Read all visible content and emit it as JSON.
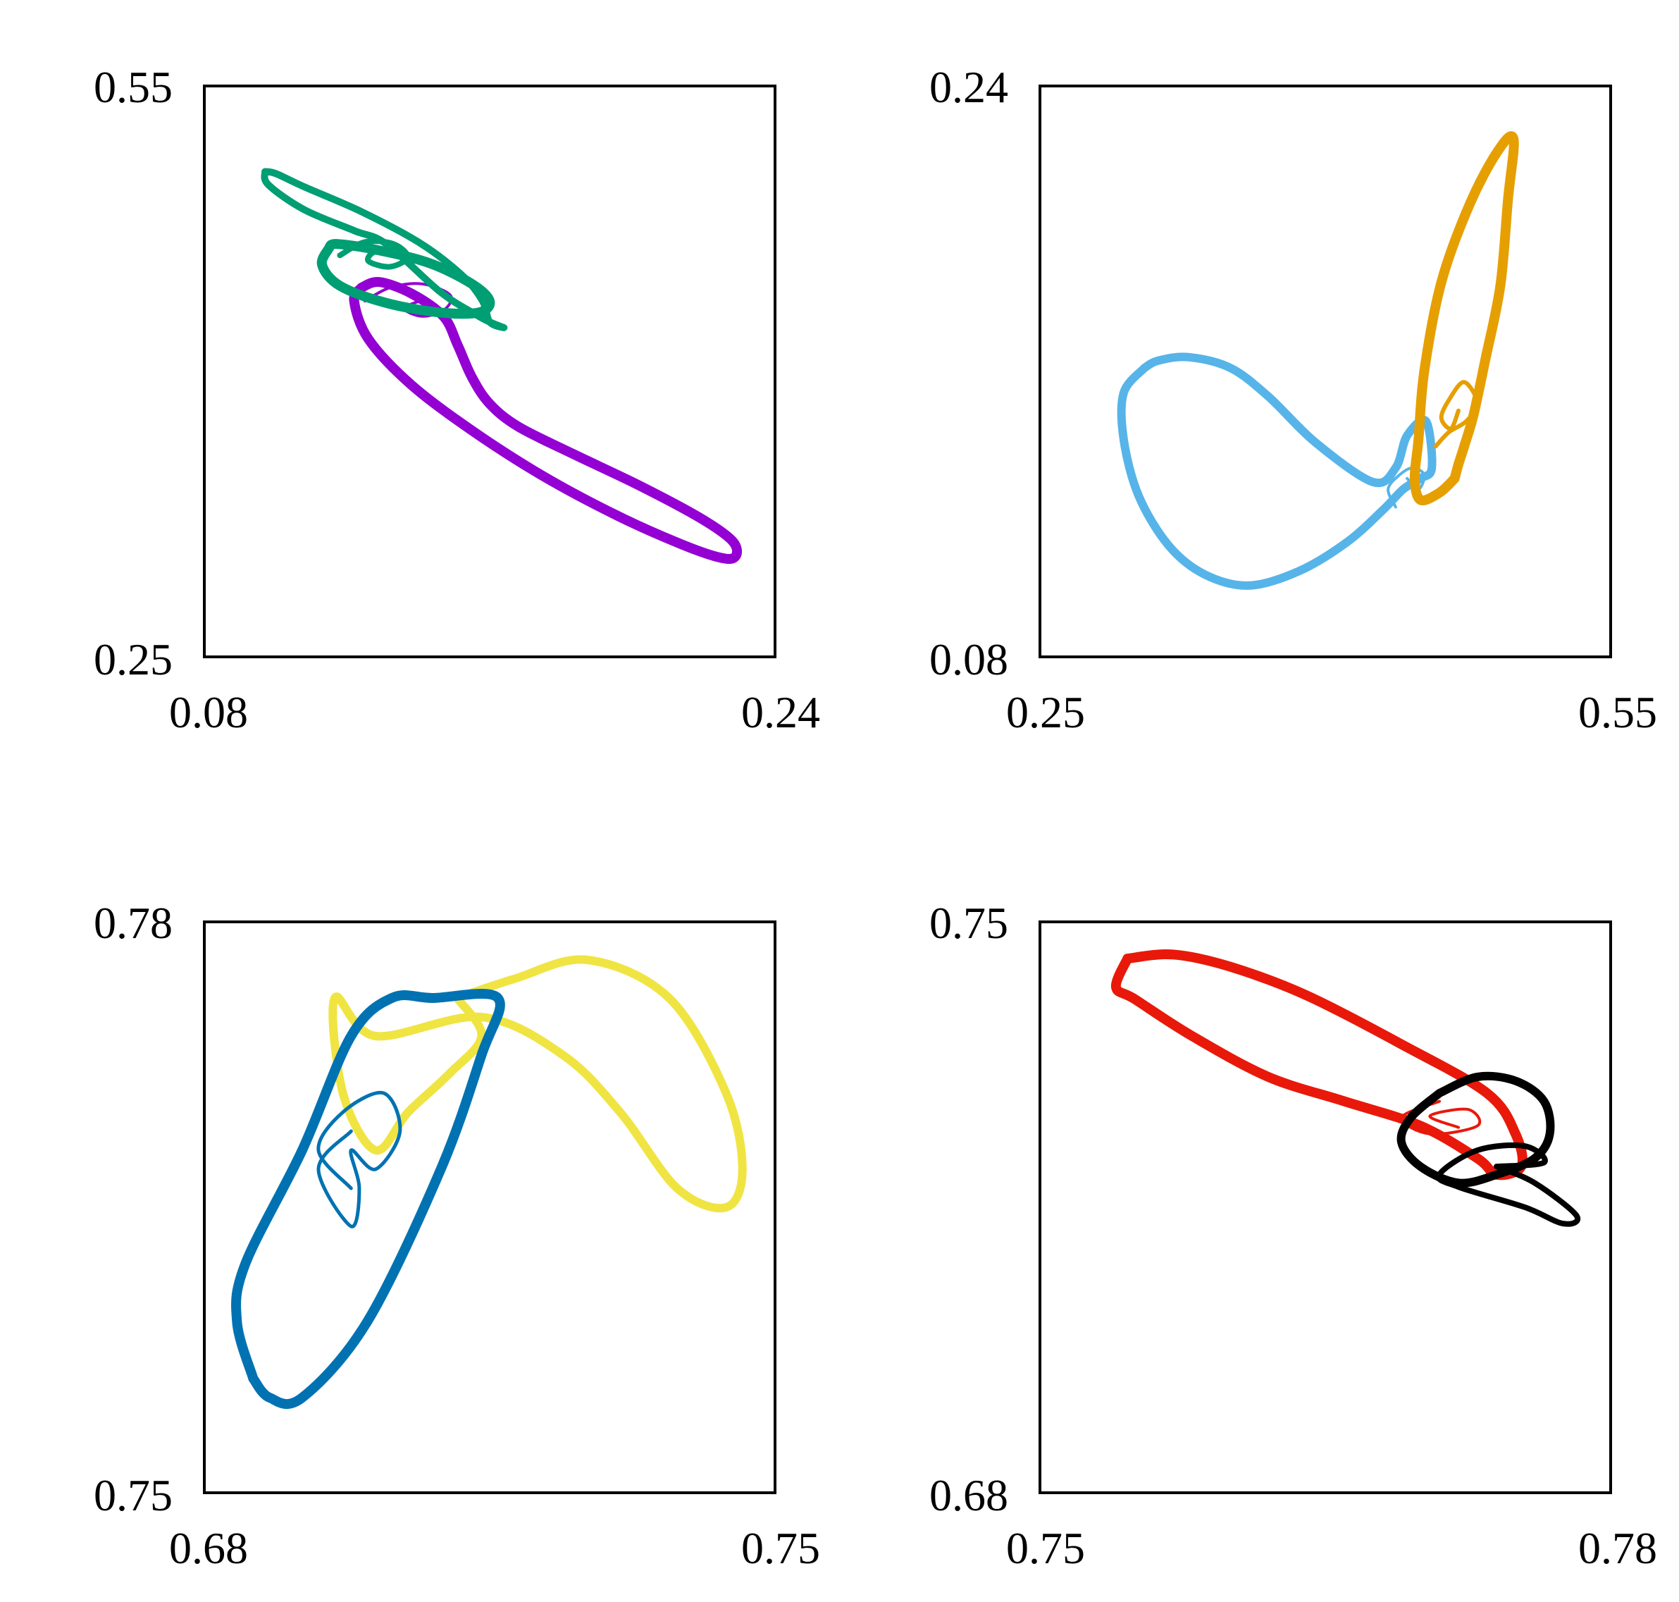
{
  "chart_data": [
    {
      "type": "line",
      "panel": "top-left",
      "xlim": [
        0.08,
        0.24
      ],
      "ylim": [
        0.25,
        0.55
      ],
      "x_ticks": [
        "0.08",
        "0.24"
      ],
      "y_ticks": [
        "0.25",
        "0.55"
      ],
      "grid": false,
      "series": [
        {
          "color": "#9400d3",
          "stroke": 14,
          "points": [
            [
              0.124,
              0.444
            ],
            [
              0.122,
              0.437
            ],
            [
              0.126,
              0.417
            ],
            [
              0.138,
              0.393
            ],
            [
              0.155,
              0.369
            ],
            [
              0.175,
              0.345
            ],
            [
              0.196,
              0.324
            ],
            [
              0.214,
              0.309
            ],
            [
              0.225,
              0.302
            ],
            [
              0.229,
              0.303
            ],
            [
              0.228,
              0.311
            ],
            [
              0.219,
              0.323
            ],
            [
              0.202,
              0.34
            ],
            [
              0.183,
              0.357
            ],
            [
              0.168,
              0.371
            ],
            [
              0.16,
              0.383
            ],
            [
              0.155,
              0.397
            ],
            [
              0.151,
              0.414
            ],
            [
              0.147,
              0.429
            ],
            [
              0.138,
              0.441
            ],
            [
              0.129,
              0.447
            ],
            [
              0.124,
              0.444
            ]
          ]
        },
        {
          "color": "#9400d3",
          "stroke": 4,
          "points": [
            [
              0.125,
              0.437
            ],
            [
              0.132,
              0.444
            ],
            [
              0.141,
              0.446
            ],
            [
              0.149,
              0.44
            ],
            [
              0.147,
              0.432
            ],
            [
              0.141,
              0.429
            ],
            [
              0.136,
              0.433
            ],
            [
              0.141,
              0.437
            ],
            [
              0.144,
              0.434
            ]
          ]
        },
        {
          "color": "#009e73",
          "stroke": 10,
          "points": [
            [
              0.097,
              0.505
            ],
            [
              0.098,
              0.498
            ],
            [
              0.108,
              0.485
            ],
            [
              0.122,
              0.474
            ],
            [
              0.131,
              0.467
            ],
            [
              0.146,
              0.442
            ],
            [
              0.156,
              0.43
            ],
            [
              0.16,
              0.426
            ],
            [
              0.164,
              0.423
            ],
            [
              0.16,
              0.426
            ],
            [
              0.158,
              0.437
            ],
            [
              0.152,
              0.451
            ],
            [
              0.14,
              0.468
            ],
            [
              0.124,
              0.484
            ],
            [
              0.108,
              0.497
            ],
            [
              0.1,
              0.504
            ],
            [
              0.097,
              0.505
            ]
          ]
        },
        {
          "color": "#009e73",
          "stroke": 14,
          "points": [
            [
              0.115,
              0.465
            ],
            [
              0.113,
              0.456
            ],
            [
              0.118,
              0.445
            ],
            [
              0.131,
              0.436
            ],
            [
              0.146,
              0.431
            ],
            [
              0.157,
              0.431
            ],
            [
              0.16,
              0.437
            ],
            [
              0.155,
              0.446
            ],
            [
              0.143,
              0.457
            ],
            [
              0.128,
              0.464
            ],
            [
              0.117,
              0.467
            ],
            [
              0.115,
              0.465
            ]
          ]
        },
        {
          "color": "#009e73",
          "stroke": 8,
          "points": [
            [
              0.118,
              0.461
            ],
            [
              0.125,
              0.468
            ],
            [
              0.133,
              0.467
            ],
            [
              0.137,
              0.46
            ],
            [
              0.132,
              0.455
            ],
            [
              0.126,
              0.458
            ],
            [
              0.128,
              0.463
            ],
            [
              0.134,
              0.462
            ]
          ]
        }
      ]
    },
    {
      "type": "line",
      "panel": "top-right",
      "xlim": [
        0.25,
        0.55
      ],
      "ylim": [
        0.08,
        0.24
      ],
      "x_ticks": [
        "0.25",
        "0.55"
      ],
      "y_ticks": [
        "0.08",
        "0.24"
      ],
      "grid": false,
      "series": [
        {
          "color": "#56b4e9",
          "stroke": 12,
          "points": [
            [
              0.305,
              0.161
            ],
            [
              0.294,
              0.154
            ],
            [
              0.294,
              0.141
            ],
            [
              0.302,
              0.125
            ],
            [
              0.318,
              0.111
            ],
            [
              0.337,
              0.103
            ],
            [
              0.36,
              0.1
            ],
            [
              0.386,
              0.104
            ],
            [
              0.411,
              0.112
            ],
            [
              0.43,
              0.121
            ],
            [
              0.441,
              0.127
            ],
            [
              0.45,
              0.13
            ],
            [
              0.456,
              0.133
            ],
            [
              0.453,
              0.146
            ],
            [
              0.443,
              0.142
            ],
            [
              0.437,
              0.133
            ],
            [
              0.425,
              0.129
            ],
            [
              0.395,
              0.14
            ],
            [
              0.37,
              0.153
            ],
            [
              0.35,
              0.161
            ],
            [
              0.328,
              0.164
            ],
            [
              0.312,
              0.163
            ],
            [
              0.305,
              0.161
            ]
          ]
        },
        {
          "color": "#56b4e9",
          "stroke": 4,
          "points": [
            [
              0.437,
              0.122
            ],
            [
              0.433,
              0.127
            ],
            [
              0.439,
              0.131
            ],
            [
              0.446,
              0.133
            ],
            [
              0.452,
              0.131
            ],
            [
              0.449,
              0.127
            ],
            [
              0.443,
              0.13
            ]
          ]
        },
        {
          "color": "#e69f00",
          "stroke": 14,
          "points": [
            [
              0.468,
              0.13
            ],
            [
              0.46,
              0.126
            ],
            [
              0.45,
              0.124
            ],
            [
              0.447,
              0.13
            ],
            [
              0.449,
              0.141
            ],
            [
              0.452,
              0.16
            ],
            [
              0.461,
              0.185
            ],
            [
              0.476,
              0.207
            ],
            [
              0.491,
              0.222
            ],
            [
              0.499,
              0.225
            ],
            [
              0.496,
              0.208
            ],
            [
              0.492,
              0.184
            ],
            [
              0.484,
              0.163
            ],
            [
              0.478,
              0.148
            ],
            [
              0.473,
              0.139
            ],
            [
              0.47,
              0.134
            ],
            [
              0.468,
              0.13
            ]
          ]
        },
        {
          "color": "#e69f00",
          "stroke": 6,
          "points": [
            [
              0.458,
              0.139
            ],
            [
              0.465,
              0.143
            ],
            [
              0.474,
              0.146
            ],
            [
              0.48,
              0.151
            ],
            [
              0.473,
              0.157
            ],
            [
              0.465,
              0.152
            ],
            [
              0.461,
              0.147
            ],
            [
              0.466,
              0.144
            ],
            [
              0.47,
              0.149
            ]
          ]
        }
      ]
    },
    {
      "type": "line",
      "panel": "bottom-left",
      "xlim": [
        0.68,
        0.75
      ],
      "ylim": [
        0.75,
        0.78
      ],
      "x_ticks": [
        "0.68",
        "0.75"
      ],
      "y_ticks": [
        "0.75",
        "0.78"
      ],
      "grid": false,
      "series": [
        {
          "color": "#f0e442",
          "stroke": 12,
          "points": [
            [
              0.711,
              0.776
            ],
            [
              0.718,
              0.777
            ],
            [
              0.727,
              0.778
            ],
            [
              0.737,
              0.776
            ],
            [
              0.744,
              0.771
            ],
            [
              0.746,
              0.767
            ],
            [
              0.744,
              0.765
            ],
            [
              0.738,
              0.766
            ],
            [
              0.731,
              0.77
            ],
            [
              0.724,
              0.773
            ],
            [
              0.714,
              0.775
            ],
            [
              0.701,
              0.774
            ],
            [
              0.696,
              0.776
            ],
            [
              0.697,
              0.771
            ],
            [
              0.701,
              0.768
            ],
            [
              0.705,
              0.77
            ],
            [
              0.71,
              0.772
            ],
            [
              0.714,
              0.774
            ],
            [
              0.711,
              0.776
            ]
          ]
        },
        {
          "color": "#0072b2",
          "stroke": 14,
          "points": [
            [
              0.686,
              0.756
            ],
            [
              0.684,
              0.759
            ],
            [
              0.685,
              0.762
            ],
            [
              0.692,
              0.768
            ],
            [
              0.698,
              0.774
            ],
            [
              0.703,
              0.776
            ],
            [
              0.708,
              0.776
            ],
            [
              0.716,
              0.776
            ],
            [
              0.714,
              0.773
            ],
            [
              0.709,
              0.767
            ],
            [
              0.7,
              0.759
            ],
            [
              0.692,
              0.755
            ],
            [
              0.688,
              0.755
            ],
            [
              0.686,
              0.756
            ]
          ]
        },
        {
          "color": "#0072b2",
          "stroke": 5,
          "points": [
            [
              0.698,
              0.766
            ],
            [
              0.694,
              0.768
            ],
            [
              0.697,
              0.77
            ],
            [
              0.702,
              0.771
            ],
            [
              0.704,
              0.769
            ],
            [
              0.701,
              0.767
            ],
            [
              0.698,
              0.768
            ],
            [
              0.699,
              0.766
            ],
            [
              0.698,
              0.764
            ],
            [
              0.694,
              0.767
            ],
            [
              0.698,
              0.769
            ]
          ]
        }
      ]
    },
    {
      "type": "line",
      "panel": "bottom-right",
      "xlim": [
        0.75,
        0.78
      ],
      "ylim": [
        0.68,
        0.75
      ],
      "x_ticks": [
        "0.75",
        "0.78"
      ],
      "y_ticks": [
        "0.68",
        "0.75"
      ],
      "grid": false,
      "series": [
        {
          "color": "#e8190a",
          "stroke": 14,
          "points": [
            [
              0.7546,
              0.7455
            ],
            [
              0.754,
              0.742
            ],
            [
              0.755,
              0.7405
            ],
            [
              0.758,
              0.736
            ],
            [
              0.762,
              0.731
            ],
            [
              0.766,
              0.728
            ],
            [
              0.77,
              0.725
            ],
            [
              0.773,
              0.721
            ],
            [
              0.774,
              0.719
            ],
            [
              0.7753,
              0.72
            ],
            [
              0.775,
              0.724
            ],
            [
              0.7735,
              0.729
            ],
            [
              0.769,
              0.735
            ],
            [
              0.764,
              0.741
            ],
            [
              0.76,
              0.7445
            ],
            [
              0.757,
              0.746
            ],
            [
              0.7546,
              0.7455
            ]
          ]
        },
        {
          "color": "#e8190a",
          "stroke": 4,
          "points": [
            [
              0.771,
              0.728
            ],
            [
              0.769,
              0.726
            ],
            [
              0.7705,
              0.724
            ],
            [
              0.773,
              0.725
            ],
            [
              0.7725,
              0.727
            ],
            [
              0.7705,
              0.7262
            ],
            [
              0.772,
              0.7248
            ]
          ]
        },
        {
          "color": "#000000",
          "stroke": 12,
          "points": [
            [
              0.771,
              0.729
            ],
            [
              0.773,
              0.731
            ],
            [
              0.775,
              0.7305
            ],
            [
              0.7765,
              0.728
            ],
            [
              0.7768,
              0.724
            ],
            [
              0.776,
              0.721
            ],
            [
              0.774,
              0.719
            ],
            [
              0.772,
              0.718
            ],
            [
              0.77,
              0.72
            ],
            [
              0.769,
              0.723
            ],
            [
              0.7695,
              0.726
            ],
            [
              0.771,
              0.729
            ]
          ]
        },
        {
          "color": "#000000",
          "stroke": 8,
          "points": [
            [
              0.774,
              0.72
            ],
            [
              0.776,
              0.718
            ],
            [
              0.7782,
              0.714
            ],
            [
              0.7775,
              0.713
            ],
            [
              0.7755,
              0.715
            ],
            [
              0.772,
              0.7175
            ],
            [
              0.771,
              0.719
            ],
            [
              0.773,
              0.722
            ],
            [
              0.7755,
              0.7225
            ],
            [
              0.7765,
              0.7205
            ],
            [
              0.774,
              0.72
            ]
          ]
        }
      ]
    }
  ]
}
